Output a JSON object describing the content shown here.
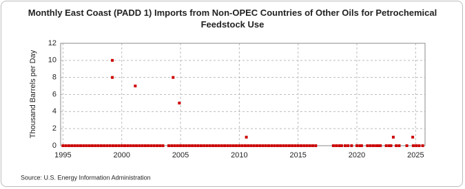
{
  "chart_data": {
    "type": "scatter",
    "title": "Monthly East Coast (PADD 1) Imports from Non-OPEC Countries of Other Oils for Petrochemical Feedstock Use",
    "y_label": "Thousand Barrels per Day",
    "source": "Source: U.S. Energy Information Administration",
    "color": "#cc0000",
    "grid": true,
    "xlim": [
      1994.8,
      2025.8
    ],
    "ylim": [
      0,
      12
    ],
    "xticks": [
      1995,
      2000,
      2005,
      2010,
      2015,
      2020,
      2025
    ],
    "yticks": [
      0,
      2,
      4,
      6,
      8,
      10,
      12
    ],
    "x": [
      1995,
      1995.25,
      1995.5,
      1995.75,
      1996,
      1996.25,
      1996.5,
      1996.75,
      1997,
      1997.25,
      1997.5,
      1997.75,
      1998,
      1998.25,
      1998.5,
      1998.75,
      1999,
      1999.25,
      1999.5,
      1999.75,
      2000,
      2000.25,
      2000.5,
      2000.75,
      2001,
      2001.25,
      2001.5,
      2001.75,
      2002,
      2002.25,
      2002.5,
      2002.75,
      2003,
      2003.25,
      2003.5,
      2004,
      2004.25,
      2004.5,
      2004.75,
      2005,
      2005.25,
      2005.5,
      2005.75,
      2006,
      2006.25,
      2006.5,
      2006.75,
      2007,
      2007.25,
      2007.5,
      2007.75,
      2008,
      2008.25,
      2008.5,
      2008.75,
      2009,
      2009.25,
      2009.5,
      2009.75,
      2010,
      2010.25,
      2010.5,
      2010.75,
      2011,
      2011.25,
      2011.5,
      2011.75,
      2012,
      2012.25,
      2012.5,
      2012.75,
      2013,
      2013.25,
      2013.5,
      2013.75,
      2014,
      2014.25,
      2014.5,
      2014.75,
      2015,
      2015.25,
      2015.5,
      2015.75,
      2016,
      2016.25,
      2016.5,
      2018,
      2018.25,
      2018.5,
      2018.7,
      2019,
      2019.25,
      2019.55,
      2020,
      2020.25,
      2020.4,
      2020.9,
      2021.15,
      2021.4,
      2021.65,
      2021.8,
      2022,
      2022.5,
      2022.75,
      2022.9,
      2023.35,
      2023.6,
      2024.25,
      2024.8,
      2025.05,
      2025.3,
      2025.6,
      1999.2,
      1999.2,
      2001.15,
      2004.37,
      2004.9,
      2010.6,
      2023.1,
      2024.75
    ],
    "values": [
      0,
      0,
      0,
      0,
      0,
      0,
      0,
      0,
      0,
      0,
      0,
      0,
      0,
      0,
      0,
      0,
      0,
      0,
      0,
      0,
      0,
      0,
      0,
      0,
      0,
      0,
      0,
      0,
      0,
      0,
      0,
      0,
      0,
      0,
      0,
      0,
      0,
      0,
      0,
      0,
      0,
      0,
      0,
      0,
      0,
      0,
      0,
      0,
      0,
      0,
      0,
      0,
      0,
      0,
      0,
      0,
      0,
      0,
      0,
      0,
      0,
      0,
      0,
      0,
      0,
      0,
      0,
      0,
      0,
      0,
      0,
      0,
      0,
      0,
      0,
      0,
      0,
      0,
      0,
      0,
      0,
      0,
      0,
      0,
      0,
      0,
      0,
      0,
      0,
      0,
      0,
      0,
      0,
      0,
      0,
      0,
      0,
      0,
      0,
      0,
      0,
      0,
      0,
      0,
      0,
      0,
      0,
      0,
      0,
      0,
      0,
      0,
      10,
      8,
      7,
      8,
      5,
      1,
      1,
      1
    ]
  }
}
